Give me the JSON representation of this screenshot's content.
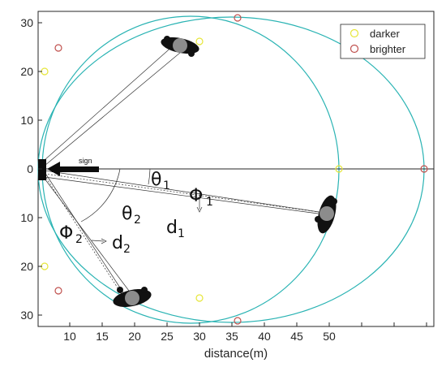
{
  "xaxis": {
    "label": "distance(m)",
    "ticks": [
      "10",
      "15",
      "20",
      "25",
      "30",
      "35",
      "40",
      "45",
      "50"
    ]
  },
  "yaxis": {
    "ticks": [
      "30",
      "20",
      "10",
      "0",
      "10",
      "20",
      "30"
    ]
  },
  "legend": {
    "items": [
      {
        "label": "darker",
        "color": "#e6e638"
      },
      {
        "label": "brighter",
        "color": "#c0504d"
      }
    ],
    "placement": "top-right"
  },
  "labels": {
    "sign": "sign",
    "theta": "θ",
    "phi": "Φ",
    "d": "d",
    "sub1": "1",
    "sub2": "2"
  },
  "colors": {
    "ellipse": "#29b3b3",
    "axis": "#262626",
    "darker": "#e6e638",
    "brighter": "#c0504d"
  }
}
